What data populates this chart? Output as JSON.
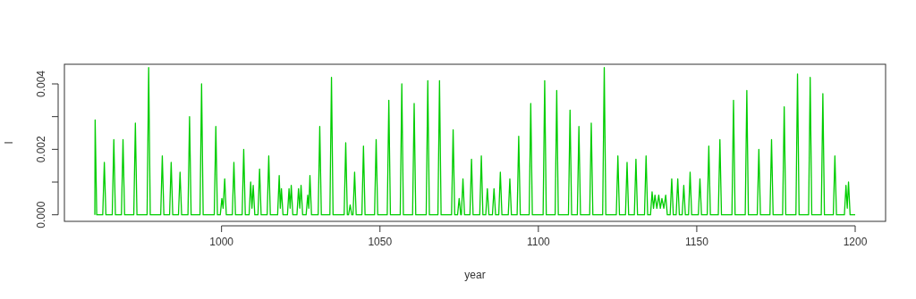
{
  "chart_data": {
    "type": "line",
    "xlabel": "year",
    "ylabel": "l",
    "xlim": [
      950.4,
      1209.6
    ],
    "ylim": [
      -0.0002,
      0.0046
    ],
    "xticks": [
      1000,
      1050,
      1100,
      1150,
      1200
    ],
    "yticks": [
      {
        "value": 0,
        "label": "0.000"
      },
      {
        "value": 0.001,
        "label": null
      },
      0.002,
      {
        "value": 0.003,
        "label": null
      },
      0.004
    ],
    "x": [
      960,
      960.1,
      960.6,
      962.5,
      963,
      963.5,
      965.5,
      966,
      966.5,
      968.4,
      968.9,
      969.4,
      972.3,
      972.8,
      973.3,
      976.5,
      977,
      977.5,
      980.8,
      981.3,
      981.8,
      983.6,
      984.1,
      984.6,
      986.4,
      986.9,
      987.4,
      989.4,
      989.9,
      990.4,
      993.2,
      993.7,
      994.2,
      997.7,
      998.2,
      998.7,
      999.6,
      1000.1,
      1000.5,
      1001,
      1001.5,
      1003.4,
      1003.9,
      1004.4,
      1006.5,
      1007,
      1007.5,
      1008.7,
      1009.2,
      1009.6,
      1010,
      1010.5,
      1011.5,
      1012,
      1012.5,
      1014.4,
      1014.9,
      1015.4,
      1017.7,
      1018.2,
      1018.55,
      1018.9,
      1019.4,
      1020.8,
      1021.3,
      1021.65,
      1022,
      1022.5,
      1023.8,
      1024.3,
      1024.7,
      1025.1,
      1025.6,
      1026.7,
      1027.2,
      1027.55,
      1027.9,
      1028.4,
      1030.5,
      1031,
      1031.5,
      1034.2,
      1034.7,
      1035.2,
      1038.7,
      1039.2,
      1039.7,
      1040.1,
      1040.6,
      1041.1,
      1041.5,
      1042,
      1042.5,
      1044.3,
      1044.8,
      1045.3,
      1048.3,
      1048.8,
      1049.3,
      1052.3,
      1052.8,
      1053.3,
      1056.4,
      1056.9,
      1057.4,
      1060.3,
      1060.8,
      1061.3,
      1064.6,
      1065.1,
      1065.6,
      1068.3,
      1068.8,
      1069.3,
      1072.6,
      1073.1,
      1073.6,
      1074.5,
      1075,
      1075.5,
      1075.7,
      1076.2,
      1076.7,
      1078.4,
      1078.9,
      1079.4,
      1081.5,
      1082,
      1082.5,
      1083.4,
      1083.9,
      1084.4,
      1085.5,
      1086,
      1086.5,
      1087.5,
      1088,
      1088.5,
      1090.5,
      1091,
      1091.5,
      1093.3,
      1093.8,
      1094.3,
      1097.1,
      1097.6,
      1098.1,
      1101.5,
      1102,
      1102.5,
      1105.3,
      1105.8,
      1106.3,
      1109.5,
      1110,
      1110.5,
      1112.3,
      1112.8,
      1113.3,
      1116.2,
      1116.7,
      1117.2,
      1120.3,
      1120.8,
      1121.3,
      1124.6,
      1125.1,
      1125.6,
      1127.5,
      1128,
      1128.5,
      1130.3,
      1130.8,
      1131.3,
      1133.5,
      1134,
      1134.5,
      1135.4,
      1135.9,
      1136.35,
      1136.8,
      1137.4,
      1138,
      1138.5,
      1139,
      1139.6,
      1140.2,
      1140.7,
      1141.6,
      1142.1,
      1142.6,
      1143.5,
      1144,
      1144.5,
      1145.4,
      1145.9,
      1146.4,
      1147.4,
      1147.9,
      1148.4,
      1150.5,
      1151,
      1151.5,
      1153.3,
      1153.8,
      1154.3,
      1156.8,
      1157.3,
      1157.8,
      1161.1,
      1161.6,
      1162.1,
      1165.3,
      1165.8,
      1166.3,
      1169.1,
      1169.6,
      1170.1,
      1173.1,
      1173.6,
      1174.1,
      1177.1,
      1177.6,
      1178.1,
      1181.3,
      1181.8,
      1182.3,
      1185.3,
      1185.8,
      1186.3,
      1189.3,
      1189.8,
      1190.3,
      1193.1,
      1193.6,
      1194.1,
      1196.6,
      1197.1,
      1197.5,
      1197.9,
      1198.4,
      1200
    ],
    "series": [
      {
        "color": "#00cd00",
        "values": [
          0,
          0.0029,
          0,
          0,
          0.0016,
          0,
          0,
          0.0023,
          0,
          0,
          0.0023,
          0,
          0,
          0.0028,
          0,
          0,
          0.0045,
          0,
          0,
          0.0018,
          0,
          0,
          0.0016,
          0,
          0,
          0.0013,
          0,
          0,
          0.003,
          0,
          0,
          0.004,
          0,
          0,
          0.0027,
          0,
          0,
          0.0005,
          0.0002,
          0.0011,
          0,
          0,
          0.0016,
          0,
          0,
          0.002,
          0,
          0,
          0.001,
          0.0002,
          0.0009,
          0,
          0,
          0.0014,
          0,
          0,
          0.0018,
          0,
          0,
          0.0012,
          0.0002,
          0.0008,
          0,
          0,
          0.0008,
          0.0002,
          0.0009,
          0,
          0,
          0.0008,
          0.0002,
          0.0009,
          0,
          0,
          0.0006,
          0.0002,
          0.0012,
          0,
          0,
          0.0027,
          0,
          0,
          0.0042,
          0,
          0,
          0.0022,
          0,
          0,
          0.0003,
          0,
          0,
          0.0013,
          0,
          0,
          0.0021,
          0,
          0,
          0.0023,
          0,
          0,
          0.0035,
          0,
          0,
          0.004,
          0,
          0,
          0.0034,
          0,
          0,
          0.0041,
          0,
          0,
          0.0041,
          0,
          0,
          0.0026,
          0,
          0,
          0.0005,
          0,
          0,
          0.0011,
          0,
          0,
          0.0017,
          0,
          0,
          0.0018,
          0,
          0,
          0.0008,
          0,
          0,
          0.0008,
          0,
          0,
          0.0013,
          0,
          0,
          0.0011,
          0,
          0,
          0.0024,
          0,
          0,
          0.0034,
          0,
          0,
          0.0041,
          0,
          0,
          0.0038,
          0,
          0,
          0.0032,
          0,
          0,
          0.0027,
          0,
          0,
          0.0028,
          0,
          0,
          0.0045,
          0,
          0,
          0.0018,
          0,
          0,
          0.0016,
          0,
          0,
          0.0017,
          0,
          0,
          0.0018,
          0,
          0,
          0.0007,
          0.0002,
          0.0006,
          0.0002,
          0.0006,
          0.0002,
          0.0005,
          0.0002,
          0.0006,
          0,
          0,
          0.0011,
          0,
          0,
          0.0011,
          0,
          0,
          0.0009,
          0,
          0,
          0.0013,
          0,
          0,
          0.0011,
          0,
          0,
          0.0021,
          0,
          0,
          0.0023,
          0,
          0,
          0.0035,
          0,
          0,
          0.0038,
          0,
          0,
          0.002,
          0,
          0,
          0.0023,
          0,
          0,
          0.0033,
          0,
          0,
          0.0043,
          0,
          0,
          0.0042,
          0,
          0,
          0.0037,
          0,
          0,
          0.0018,
          0,
          0,
          0.0009,
          0.0002,
          0.001,
          0,
          0
        ]
      }
    ]
  }
}
